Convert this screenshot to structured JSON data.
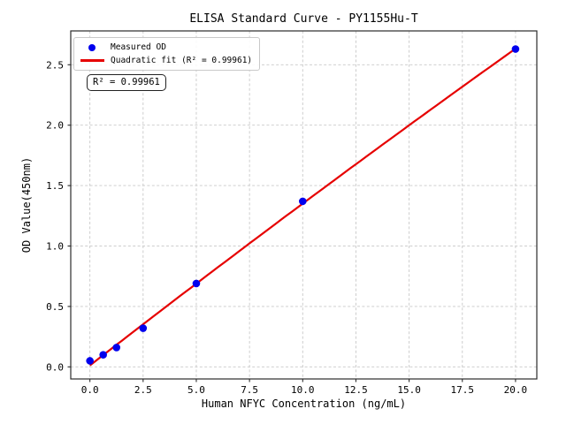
{
  "chart_data": {
    "type": "scatter",
    "title": "ELISA Standard Curve - PY1155Hu-T",
    "xlabel": "Human NFYC Concentration (ng/mL)",
    "ylabel": "OD Value(450nm)",
    "series": [
      {
        "name": "Measured OD",
        "type": "scatter",
        "x": [
          0,
          0.625,
          1.25,
          2.5,
          5,
          10,
          20
        ],
        "y": [
          0.05,
          0.1,
          0.16,
          0.32,
          0.69,
          1.37,
          2.63
        ]
      },
      {
        "name": "Quadratic fit (R² = 0.99961)",
        "type": "line",
        "fit": "quadratic",
        "coefficients": {
          "a": 0.0124,
          "b": 0.1367,
          "c": -0.000283
        },
        "x_range": [
          0,
          20
        ],
        "r_squared": 0.99961
      }
    ],
    "xlim": [
      -0.9,
      21.0
    ],
    "ylim": [
      -0.1,
      2.78
    ],
    "xticks": {
      "values": [
        0,
        2.5,
        5,
        7.5,
        10,
        12.5,
        15,
        17.5,
        20
      ],
      "labels": [
        "0.0",
        "2.5",
        "5.0",
        "7.5",
        "10.0",
        "12.5",
        "15.0",
        "17.5",
        "20.0"
      ]
    },
    "yticks": {
      "values": [
        0,
        0.5,
        1.0,
        1.5,
        2.0,
        2.5
      ],
      "labels": [
        "0.0",
        "0.5",
        "1.0",
        "1.5",
        "2.0",
        "2.5"
      ]
    },
    "grid": {
      "visible": true,
      "style": "dashed"
    },
    "legend": {
      "position": "upper-left",
      "items": [
        {
          "marker": "dot",
          "label": "Measured OD"
        },
        {
          "marker": "line",
          "label": "Quadratic fit (R² = 0.99961)"
        }
      ]
    },
    "annotation": {
      "text": "R² = 0.99961"
    },
    "colors": {
      "points": "#0000ee",
      "fit_line": "#e60000",
      "grid": "#c8c8c8",
      "spine": "#2b2b2b",
      "text": "#000000"
    }
  }
}
